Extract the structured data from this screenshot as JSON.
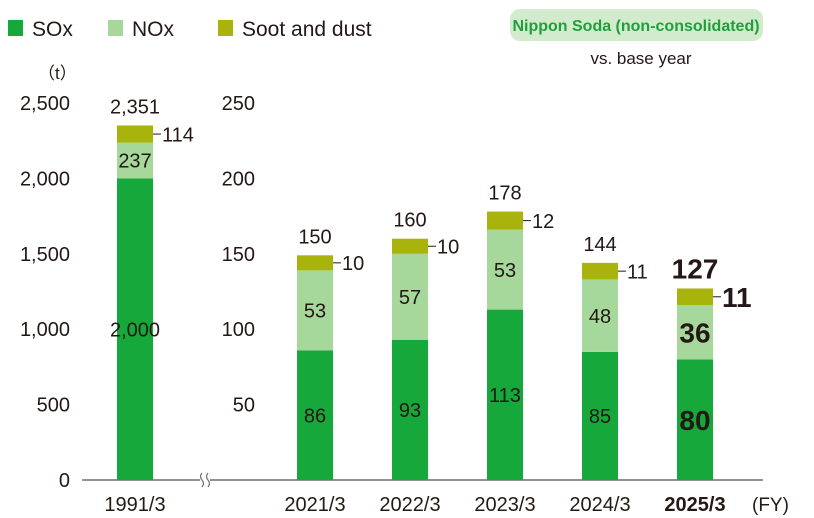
{
  "chart_data": {
    "type": "bar",
    "stacked": true,
    "unit": "（t）",
    "x_unit": "(FY)",
    "badge": "Nippon Soda (non-consolidated)",
    "badge_note": "vs. base year",
    "colors": {
      "SOx": "#16a83a",
      "NOx": "#a6d89b",
      "Soot and dust": "#a8b40c",
      "badge_bg": "#d3ebcd",
      "badge_text": "#1fa03c"
    },
    "legend": [
      "SOx",
      "NOx",
      "Soot and dust"
    ],
    "legend_placement": "top-left",
    "left_axis": {
      "ylim": [
        0,
        2500
      ],
      "ticks": [
        "0",
        "500",
        "1,000",
        "1,500",
        "2,000",
        "2,500"
      ]
    },
    "right_axis": {
      "ylim": [
        0,
        250
      ],
      "ticks": [
        "50",
        "100",
        "150",
        "200",
        "250"
      ]
    },
    "axis_break": true,
    "categories": [
      "1991/3",
      "2021/3",
      "2022/3",
      "2023/3",
      "2024/3",
      "2025/3"
    ],
    "highlight": "2025/3",
    "series": [
      {
        "name": "SOx",
        "values": [
          2000,
          86,
          93,
          113,
          85,
          80
        ],
        "labels": [
          "2,000",
          "86",
          "93",
          "113",
          "85",
          "80"
        ]
      },
      {
        "name": "NOx",
        "values": [
          237,
          53,
          57,
          53,
          48,
          36
        ],
        "labels": [
          "237",
          "53",
          "57",
          "53",
          "48",
          "36"
        ]
      },
      {
        "name": "Soot and dust",
        "values": [
          114,
          10,
          10,
          12,
          11,
          11
        ],
        "labels": [
          "114",
          "10",
          "10",
          "12",
          "11",
          "11"
        ]
      }
    ],
    "totals": [
      "2,351",
      "150",
      "160",
      "178",
      "144",
      "127"
    ]
  }
}
